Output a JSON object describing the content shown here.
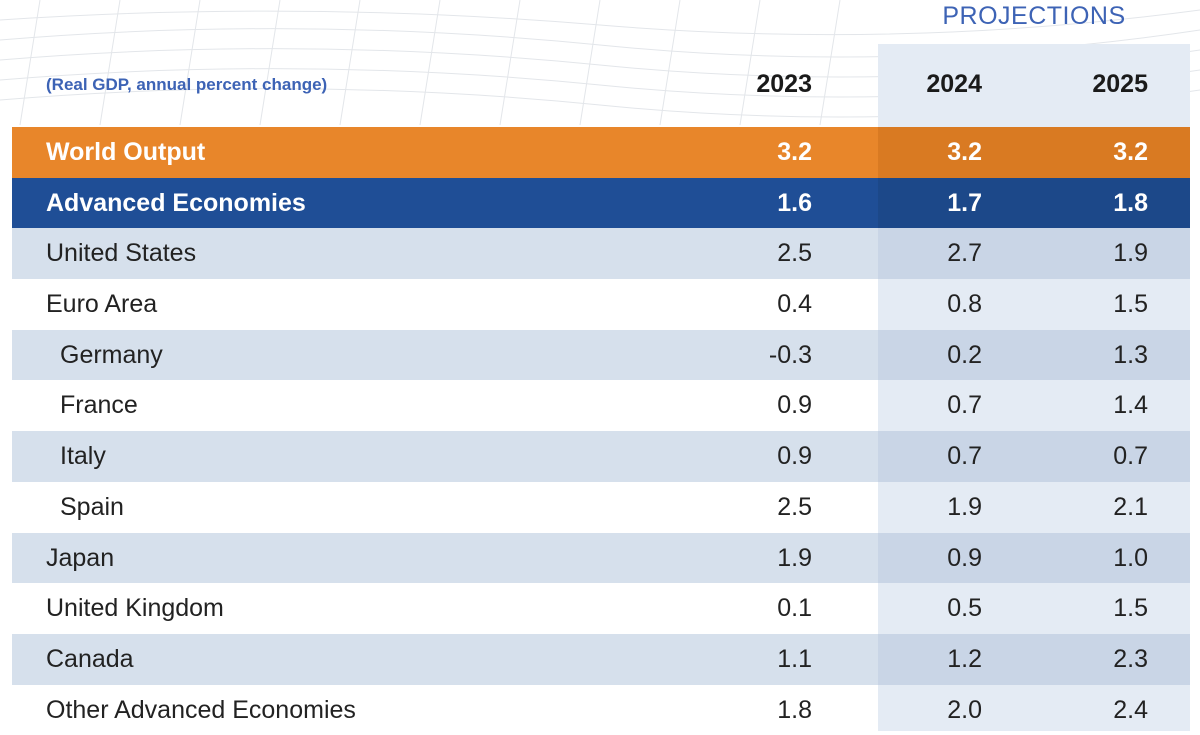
{
  "chart_data": {
    "type": "table",
    "subtitle": "(Real GDP, annual percent change)",
    "group_label": "PROJECTIONS",
    "columns": [
      "2023",
      "2024",
      "2025"
    ],
    "rows": [
      {
        "label": "World Output",
        "values": [
          "3.2",
          "3.2",
          "3.2"
        ],
        "style": "world",
        "indent": false
      },
      {
        "label": "Advanced Economies",
        "values": [
          "1.6",
          "1.7",
          "1.8"
        ],
        "style": "advanced",
        "indent": false
      },
      {
        "label": "United States",
        "values": [
          "2.5",
          "2.7",
          "1.9"
        ],
        "style": "shade",
        "indent": false
      },
      {
        "label": "Euro Area",
        "values": [
          "0.4",
          "0.8",
          "1.5"
        ],
        "style": "plain",
        "indent": false
      },
      {
        "label": "Germany",
        "values": [
          "-0.3",
          "0.2",
          "1.3"
        ],
        "style": "shade",
        "indent": true
      },
      {
        "label": "France",
        "values": [
          "0.9",
          "0.7",
          "1.4"
        ],
        "style": "plain",
        "indent": true
      },
      {
        "label": "Italy",
        "values": [
          "0.9",
          "0.7",
          "0.7"
        ],
        "style": "shade",
        "indent": true
      },
      {
        "label": "Spain",
        "values": [
          "2.5",
          "1.9",
          "2.1"
        ],
        "style": "plain",
        "indent": true
      },
      {
        "label": "Japan",
        "values": [
          "1.9",
          "0.9",
          "1.0"
        ],
        "style": "shade",
        "indent": false
      },
      {
        "label": "United Kingdom",
        "values": [
          "0.1",
          "0.5",
          "1.5"
        ],
        "style": "plain",
        "indent": false
      },
      {
        "label": "Canada",
        "values": [
          "1.1",
          "1.2",
          "2.3"
        ],
        "style": "shade",
        "indent": false
      },
      {
        "label": "Other Advanced Economies",
        "values": [
          "1.8",
          "2.0",
          "2.4"
        ],
        "style": "plain",
        "indent": false
      }
    ]
  },
  "colors": {
    "world_row": "#e8862a",
    "advanced_row": "#1f4e96",
    "shaded_row": "#d6e0ec",
    "projection_column": "#e4ebf4",
    "accent_text": "#3d63b5"
  }
}
